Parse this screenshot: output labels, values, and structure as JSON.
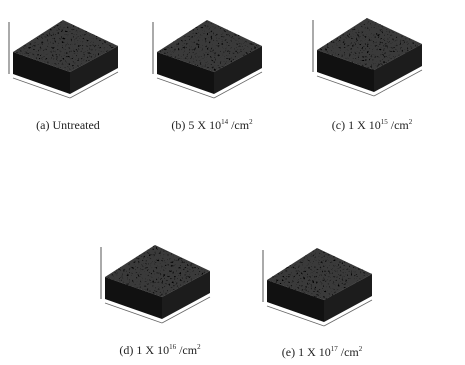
{
  "figure": {
    "panels": [
      {
        "caption": {
          "text": "(a) Untreated"
        }
      },
      {
        "caption": {
          "text": "(b) 5 X 10",
          "exponent": "14",
          "unit": " /cm",
          "unit_exponent": "2"
        }
      },
      {
        "caption": {
          "text": "(c) 1 X 10",
          "exponent": "15",
          "unit": " /cm",
          "unit_exponent": "2"
        }
      },
      {
        "caption": {
          "text": "(d) 1 X 10",
          "exponent": "16",
          "unit": " /cm",
          "unit_exponent": "2"
        }
      },
      {
        "caption": {
          "text": "(e) 1 X 10",
          "exponent": "17",
          "unit": " /cm",
          "unit_exponent": "2"
        }
      }
    ]
  }
}
